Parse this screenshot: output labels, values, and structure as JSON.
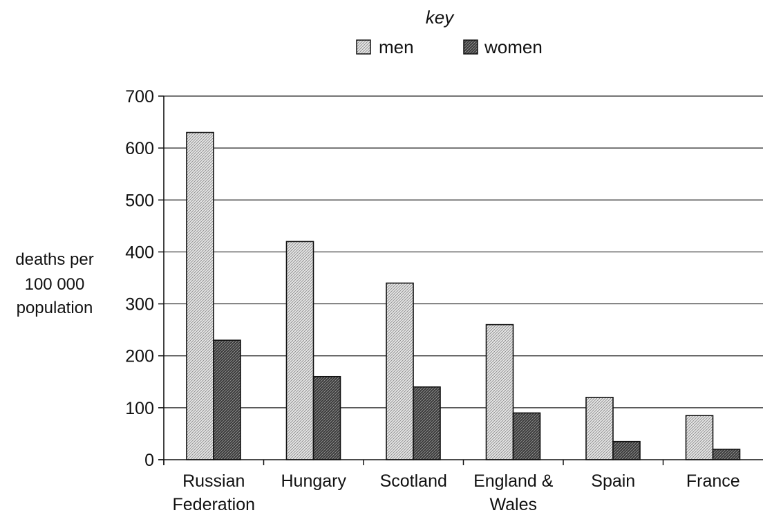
{
  "chart_data": {
    "type": "bar",
    "title": "",
    "xlabel": "",
    "ylabel": [
      "deaths per",
      "100 000",
      "population"
    ],
    "ylim": [
      0,
      700
    ],
    "yticks": [
      0,
      100,
      200,
      300,
      400,
      500,
      600,
      700
    ],
    "grid": true,
    "legend_title": "key",
    "legend_placement": "top-center",
    "categories": [
      [
        "Russian",
        "Federation"
      ],
      [
        "Hungary"
      ],
      [
        "Scotland"
      ],
      [
        "England &",
        "Wales"
      ],
      [
        "Spain"
      ],
      [
        "France"
      ]
    ],
    "series": [
      {
        "name": "men",
        "color": "#cfcfcf",
        "values": [
          630,
          420,
          340,
          260,
          120,
          85
        ]
      },
      {
        "name": "women",
        "color": "#5a5a5a",
        "values": [
          230,
          160,
          140,
          90,
          35,
          20
        ]
      }
    ]
  }
}
